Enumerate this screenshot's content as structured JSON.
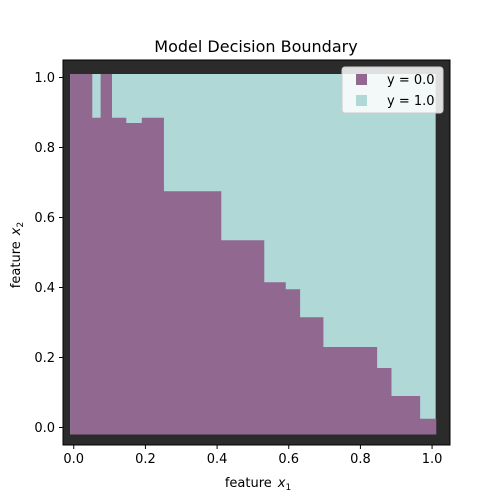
{
  "chart_data": {
    "type": "heatmap",
    "title": "Model Decision Boundary",
    "xlabel": "feature",
    "xlabel_sub": "1",
    "ylabel": "feature",
    "ylabel_sub": "2",
    "xlim": [
      -0.03,
      1.05
    ],
    "ylim": [
      -0.05,
      1.05
    ],
    "xticks": [
      0.0,
      0.2,
      0.4,
      0.6,
      0.8,
      1.0
    ],
    "xtick_labels": [
      "0.0",
      "0.2",
      "0.4",
      "0.6",
      "0.8",
      "1.0"
    ],
    "yticks": [
      0.0,
      0.2,
      0.4,
      0.6,
      0.8,
      1.0
    ],
    "ytick_labels": [
      "0.0",
      "0.2",
      "0.4",
      "0.6",
      "0.8",
      "1.0"
    ],
    "grid": false,
    "legend_position": "upper right",
    "background_color": "#2b2b2b",
    "colors": {
      "class0": "#906890",
      "class1": "#b0d8d6"
    },
    "region_extent": {
      "x": [
        -0.01,
        1.01
      ],
      "y": [
        -0.02,
        1.01
      ]
    },
    "series": [
      {
        "name": "y = 0.0",
        "color": "#906890"
      },
      {
        "name": "y = 1.0",
        "color": "#b0d8d6"
      }
    ],
    "class0_region": [
      {
        "x0": -0.01,
        "x1": 0.05,
        "y_top": 1.01
      },
      {
        "x0": 0.05,
        "x1": 0.075,
        "y_top": 0.885
      },
      {
        "x0": 0.075,
        "x1": 0.105,
        "y_top": 1.01
      },
      {
        "x0": 0.105,
        "x1": 0.145,
        "y_top": 0.885
      },
      {
        "x0": 0.145,
        "x1": 0.19,
        "y_top": 0.87
      },
      {
        "x0": 0.19,
        "x1": 0.25,
        "y_top": 0.885
      },
      {
        "x0": 0.25,
        "x1": 0.41,
        "y_top": 0.675
      },
      {
        "x0": 0.41,
        "x1": 0.53,
        "y_top": 0.535
      },
      {
        "x0": 0.53,
        "x1": 0.59,
        "y_top": 0.415
      },
      {
        "x0": 0.59,
        "x1": 0.63,
        "y_top": 0.395
      },
      {
        "x0": 0.63,
        "x1": 0.695,
        "y_top": 0.315
      },
      {
        "x0": 0.695,
        "x1": 0.845,
        "y_top": 0.23
      },
      {
        "x0": 0.845,
        "x1": 0.885,
        "y_top": 0.17
      },
      {
        "x0": 0.885,
        "x1": 0.965,
        "y_top": 0.09
      },
      {
        "x0": 0.965,
        "x1": 1.01,
        "y_top": 0.025
      }
    ]
  }
}
